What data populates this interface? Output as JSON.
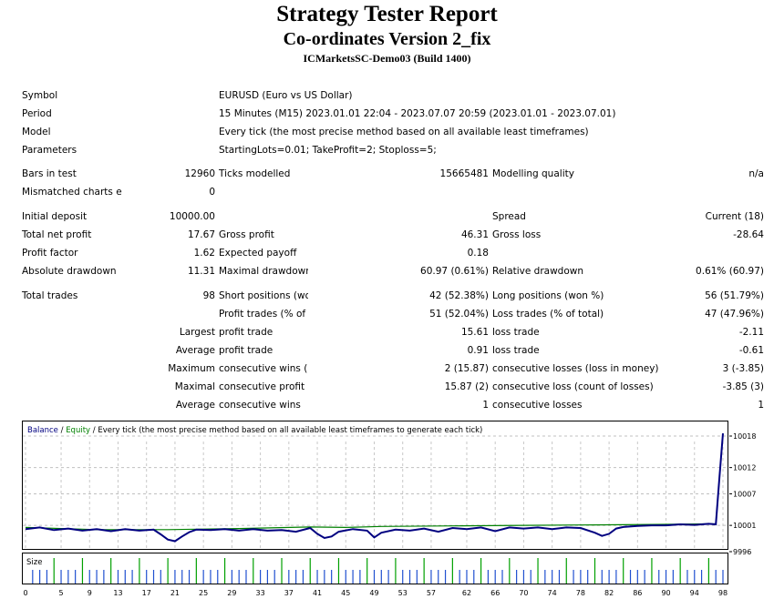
{
  "header": {
    "title": "Strategy Tester Report",
    "subtitle": "Co-ordinates Version 2_fix",
    "server": "ICMarketsSC-Demo03 (Build 1400)"
  },
  "info": {
    "symbol_label": "Symbol",
    "symbol": "EURUSD (Euro vs US Dollar)",
    "period_label": "Period",
    "period": "15 Minutes (M15) 2023.01.01 22:04 - 2023.07.07 20:59 (2023.01.01 - 2023.07.01)",
    "model_label": "Model",
    "model": "Every tick (the most precise method based on all available least timeframes)",
    "parameters_label": "Parameters",
    "parameters": "StartingLots=0.01; TakeProfit=2; Stoploss=5;"
  },
  "stats": {
    "bars_label": "Bars in test",
    "bars": "12960",
    "ticks_label": "Ticks modelled",
    "ticks": "15665481",
    "quality_label": "Modelling quality",
    "quality": "n/a",
    "mismatch_label": "Mismatched charts errors",
    "mismatch": "0",
    "deposit_label": "Initial deposit",
    "deposit": "10000.00",
    "spread_label": "Spread",
    "spread": "Current (18)",
    "net_label": "Total net profit",
    "net": "17.67",
    "gprofit_label": "Gross profit",
    "gprofit": "46.31",
    "gloss_label": "Gross loss",
    "gloss": "-28.64",
    "pf_label": "Profit factor",
    "pf": "1.62",
    "payoff_label": "Expected payoff",
    "payoff": "0.18",
    "absdd_label": "Absolute drawdown",
    "absdd": "11.31",
    "maxdd_label": "Maximal drawdown",
    "maxdd": "60.97 (0.61%)",
    "reldd_label": "Relative drawdown",
    "reldd": "0.61% (60.97)",
    "trades_label": "Total trades",
    "trades": "98",
    "short_label": "Short positions (won %)",
    "short": "42 (52.38%)",
    "long_label": "Long positions (won %)",
    "long": "56 (51.79%)",
    "ptrades_label": "Profit trades (% of total)",
    "ptrades": "51 (52.04%)",
    "ltrades_label": "Loss trades (% of total)",
    "ltrades": "47 (47.96%)",
    "largest_label": "Largest",
    "profit_trade_label": "profit trade",
    "largest_profit": "15.61",
    "loss_trade_label": "loss trade",
    "largest_loss": "-2.11",
    "average_label": "Average",
    "avg_profit": "0.91",
    "avg_loss": "-0.61",
    "maximum_label": "Maximum",
    "cwins_money_label": "consecutive wins (profit in money)",
    "cwins_money": "2 (15.87)",
    "closses_money_label": "consecutive losses (loss in money)",
    "closses_money": "3 (-3.85)",
    "maximal_label": "Maximal",
    "cprofit_count_label": "consecutive profit (count of wins)",
    "cprofit_count": "15.87 (2)",
    "closs_count_label": "consecutive loss (count of losses)",
    "closs_count": "-3.85 (3)",
    "cwins_label": "consecutive wins",
    "cwins": "1",
    "closses_label": "consecutive losses",
    "closses": "1"
  },
  "chart_data": {
    "type": "line",
    "legend_balance": "Balance",
    "legend_sep": " / ",
    "legend_equity": "Equity",
    "legend_rest": " / Every tick (the most precise method based on all available least timeframes to generate each tick)",
    "balance_color": "#000080",
    "equity_color": "#008000",
    "y_ticks": [
      "10018",
      "10012",
      "10007",
      "10001",
      "9996"
    ],
    "ylim": [
      9996,
      10018
    ],
    "x_ticks": [
      "0",
      "5",
      "9",
      "13",
      "17",
      "21",
      "25",
      "29",
      "33",
      "37",
      "41",
      "45",
      "49",
      "53",
      "57",
      "62",
      "66",
      "70",
      "74",
      "78",
      "82",
      "86",
      "90",
      "94",
      "98"
    ],
    "xlim": [
      0,
      98
    ],
    "size_label": "Size",
    "series": [
      {
        "name": "Balance",
        "x": [
          0,
          2,
          4,
          6,
          8,
          10,
          12,
          14,
          16,
          18,
          19,
          20,
          21,
          22,
          23,
          24,
          26,
          28,
          30,
          32,
          34,
          36,
          38,
          40,
          41,
          42,
          43,
          44,
          46,
          48,
          49,
          50,
          52,
          54,
          56,
          58,
          60,
          62,
          64,
          66,
          68,
          70,
          72,
          74,
          76,
          78,
          80,
          81,
          82,
          83,
          84,
          86,
          88,
          90,
          92,
          94,
          96,
          97,
          97.5,
          98
        ],
        "values": [
          10000.3,
          10000.6,
          10000.1,
          10000.4,
          10000.0,
          10000.3,
          9999.9,
          10000.3,
          10000.0,
          10000.2,
          9999.3,
          9998.3,
          9998.0,
          9998.9,
          9999.7,
          10000.2,
          10000.1,
          10000.3,
          10000.0,
          10000.3,
          10000.0,
          10000.1,
          9999.8,
          10000.5,
          9999.4,
          9998.6,
          9998.9,
          9999.8,
          10000.3,
          10000.0,
          9998.7,
          9999.6,
          10000.2,
          10000.0,
          10000.4,
          9999.8,
          10000.5,
          10000.3,
          10000.6,
          9999.9,
          10000.6,
          10000.4,
          10000.6,
          10000.3,
          10000.6,
          10000.5,
          9999.6,
          9999.0,
          9999.4,
          10000.4,
          10000.7,
          10000.9,
          10001.0,
          10001.0,
          10001.2,
          10001.1,
          10001.3,
          10001.2,
          10010.0,
          10018.5
        ]
      },
      {
        "name": "Equity",
        "x": [
          0,
          10,
          20,
          30,
          40,
          45,
          50,
          60,
          70,
          80,
          90,
          97,
          97.5,
          98
        ],
        "values": [
          10000.6,
          10000.2,
          10000.2,
          10000.4,
          10000.7,
          10000.6,
          10000.8,
          10000.9,
          10001.0,
          10001.1,
          10001.2,
          10001.3,
          10010.0,
          10018.5
        ]
      }
    ]
  }
}
